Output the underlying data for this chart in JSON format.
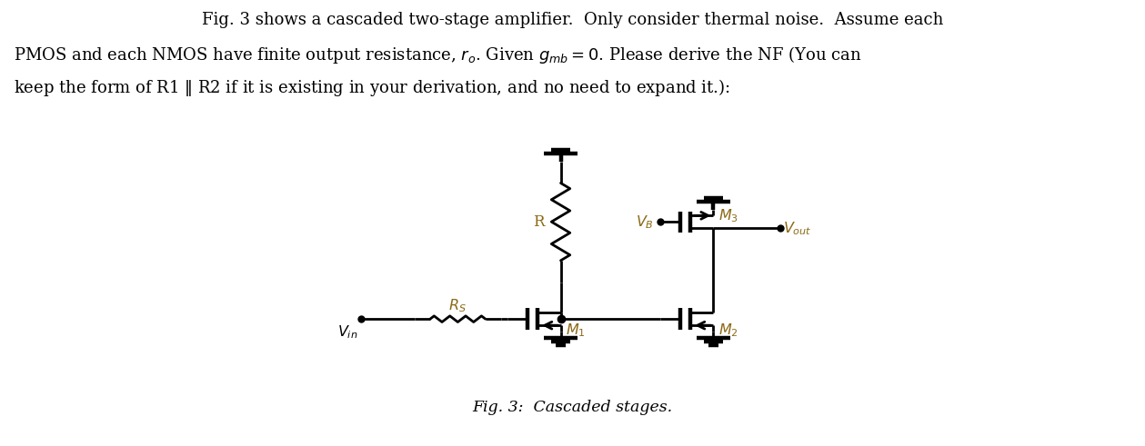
{
  "figsize": [
    12.59,
    4.91
  ],
  "dpi": 100,
  "text_color": "#000000",
  "blue_color": "#8B6914",
  "bg_color": "#ffffff",
  "caption": "Fig. 3:  Cascaded stages.",
  "line_width": 2.0,
  "thick_lw": 3.2
}
